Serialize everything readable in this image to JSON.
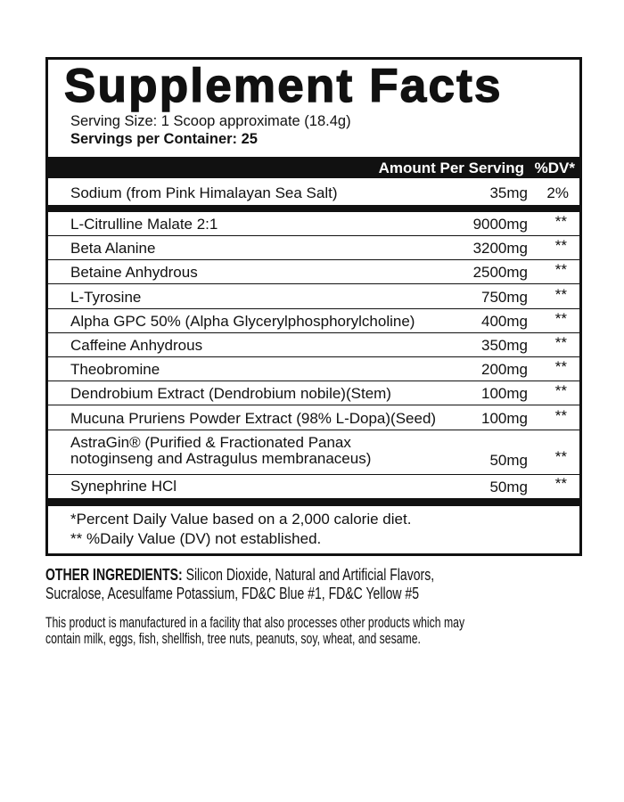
{
  "label": {
    "title": "Supplement Facts",
    "serving_size": "Serving Size: 1 Scoop approximate (18.4g)",
    "servings_per_container": "Servings per Container: 25",
    "header_amount": "Amount Per Serving",
    "header_dv": "%DV*",
    "sodium": {
      "name": "Sodium (from Pink Himalayan Sea Salt)",
      "amount": "35mg",
      "dv": "2%"
    },
    "ingredients": [
      {
        "name": "L-Citrulline Malate 2:1",
        "amount": "9000mg",
        "dv": "**"
      },
      {
        "name": "Beta Alanine",
        "amount": "3200mg",
        "dv": "**"
      },
      {
        "name": "Betaine Anhydrous",
        "amount": "2500mg",
        "dv": "**"
      },
      {
        "name": "L-Tyrosine",
        "amount": "750mg",
        "dv": "**"
      },
      {
        "name": "Alpha GPC 50% (Alpha Glycerylphosphorylcholine)",
        "amount": "400mg",
        "dv": "**"
      },
      {
        "name": "Caffeine Anhydrous",
        "amount": "350mg",
        "dv": "**"
      },
      {
        "name": "Theobromine",
        "amount": "200mg",
        "dv": "**"
      },
      {
        "name": "Dendrobium Extract (Dendrobium nobile)(Stem)",
        "amount": "100mg",
        "dv": "**"
      },
      {
        "name": "Mucuna Pruriens Powder Extract (98% L-Dopa)(Seed)",
        "amount": "100mg",
        "dv": "**"
      },
      {
        "name_line1": "AstraGin® (Purified & Fractionated Panax",
        "name_line2": "notoginseng and Astragulus membranaceus)",
        "amount": "50mg",
        "dv": "**"
      },
      {
        "name": "Synephrine HCl",
        "amount": "50mg",
        "dv": "**"
      }
    ],
    "footnote1": "*Percent Daily Value based on a 2,000 calorie diet.",
    "footnote2": "** %Daily Value (DV) not established."
  },
  "other_ingredients": {
    "label": "OTHER INGREDIENTS:",
    "line1": " Silicon Dioxide, Natural and Artificial Flavors,",
    "line2": "Sucralose, Acesulfame Potassium, FD&C Blue #1, FD&C Yellow #5"
  },
  "allergen": {
    "line1": "This product is manufactured in a facility that also processes other products which may",
    "line2": "contain milk, eggs, fish, shellfish, tree nuts, peanuts, soy, wheat, and sesame."
  }
}
